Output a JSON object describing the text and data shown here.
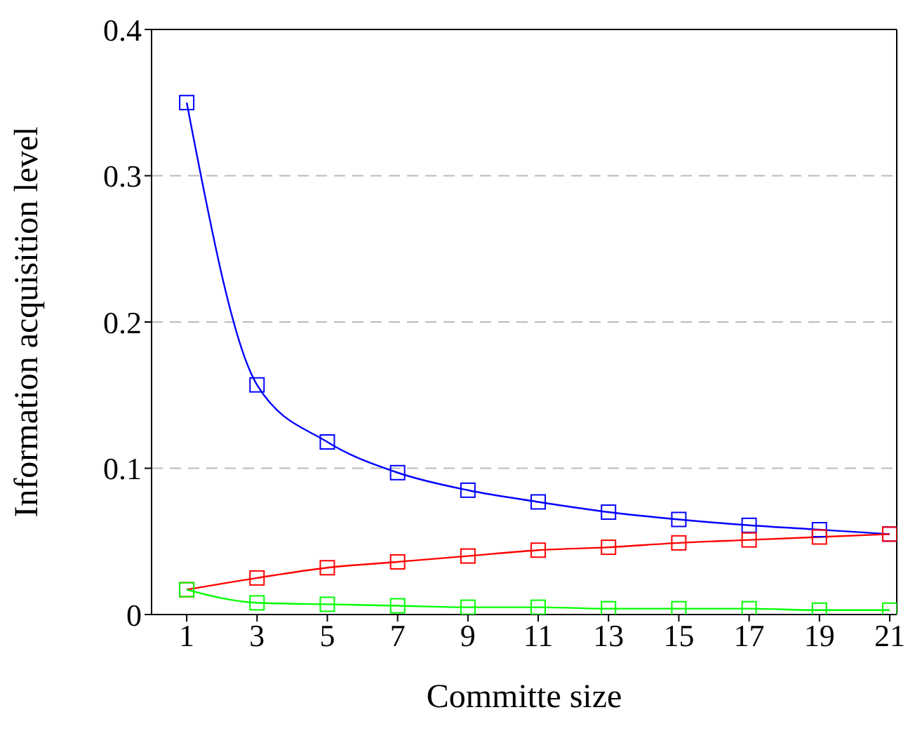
{
  "chart_data": {
    "type": "line",
    "xlabel": "Committe size",
    "ylabel": "Information acquisition level",
    "x": [
      1,
      3,
      5,
      7,
      9,
      11,
      13,
      15,
      17,
      19,
      21
    ],
    "series": [
      {
        "color": "#0000ff",
        "values": [
          0.35,
          0.157,
          0.118,
          0.097,
          0.085,
          0.077,
          0.07,
          0.065,
          0.061,
          0.058,
          0.055
        ]
      },
      {
        "color": "#ff0000",
        "values": [
          0.017,
          0.025,
          0.032,
          0.036,
          0.04,
          0.044,
          0.046,
          0.049,
          0.051,
          0.053,
          0.055
        ]
      },
      {
        "color": "#00ff00",
        "values": [
          0.017,
          0.008,
          0.007,
          0.006,
          0.005,
          0.005,
          0.004,
          0.004,
          0.004,
          0.003,
          0.003
        ]
      }
    ],
    "xlim": [
      0,
      21.2
    ],
    "xticks": [
      1,
      3,
      5,
      7,
      9,
      11,
      13,
      15,
      17,
      19,
      21
    ],
    "ylim": [
      0,
      0.4
    ],
    "yticks": [
      0,
      0.1,
      0.2,
      0.3,
      0.4
    ],
    "grid": "y",
    "legend": false,
    "marker": "square",
    "line_style": "solid"
  }
}
